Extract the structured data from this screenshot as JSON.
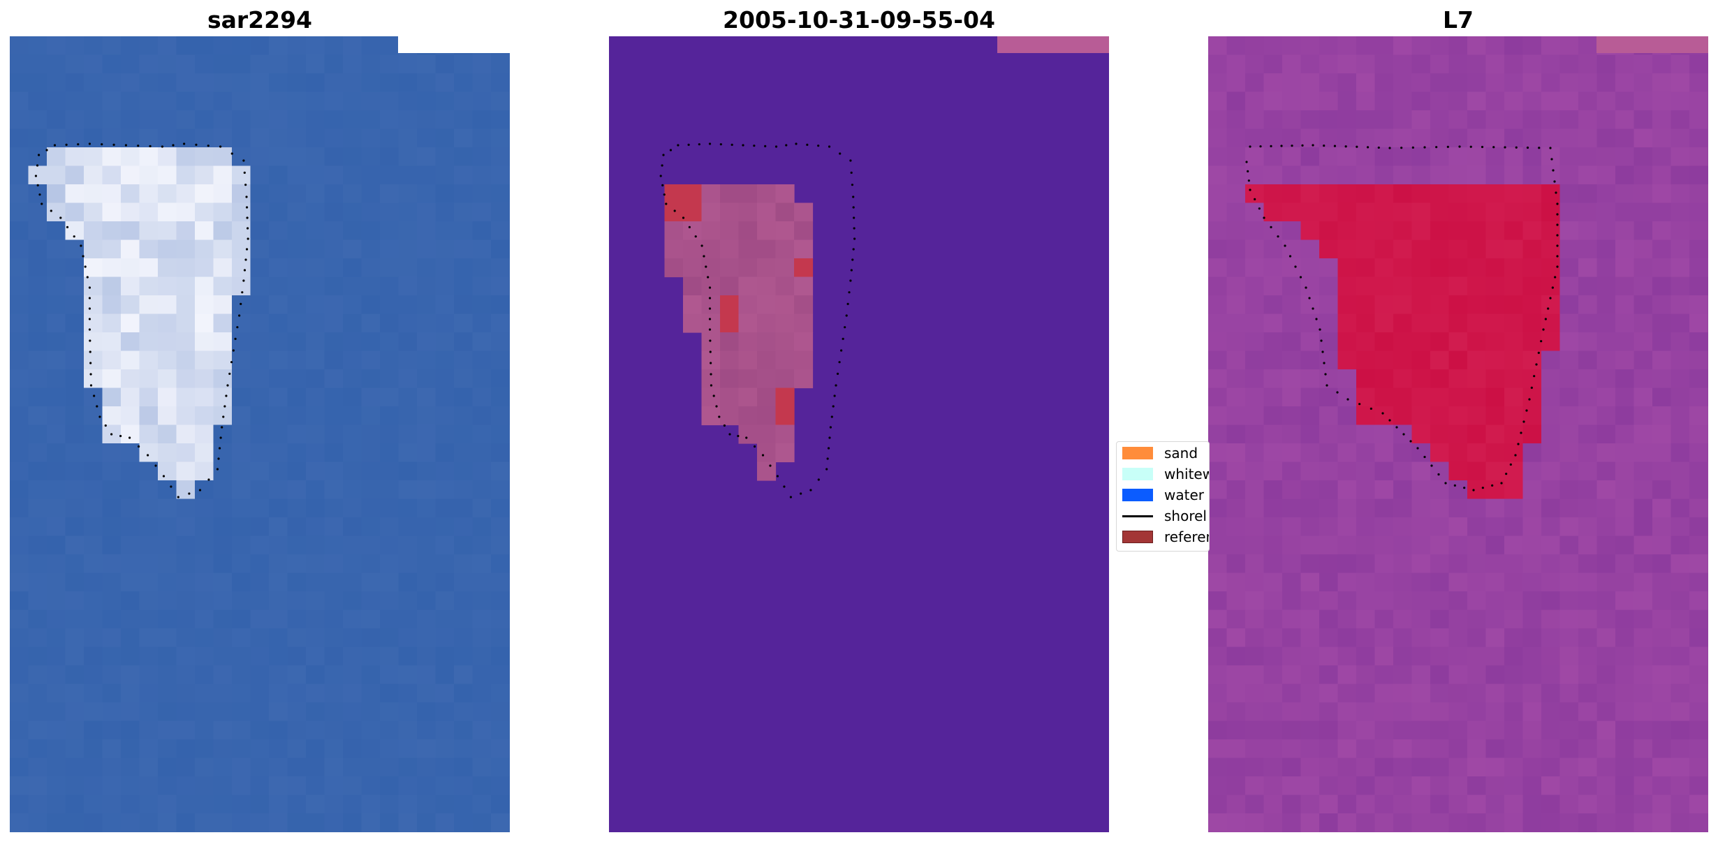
{
  "panels": [
    {
      "title": "sar2294"
    },
    {
      "title": "2005-10-31-09-55-04"
    },
    {
      "title": "L7"
    }
  ],
  "legend": {
    "items": [
      {
        "label": "sand",
        "color": "#ff8c3a"
      },
      {
        "label": "whitew",
        "color": "#c8fff8"
      },
      {
        "label": "water",
        "color": "#0b5cff"
      },
      {
        "label": "shorel",
        "color": "#000000"
      },
      {
        "label": "referen",
        "color": "#a33636"
      }
    ]
  },
  "colors": {
    "rgb_water": "#3563ad",
    "classified_background": "#55249a",
    "classified_feature": "#b05890",
    "reference": "#c4384e",
    "mndwi_background": "#8e3c9e",
    "mndwi_feature": "#cc1045"
  }
}
